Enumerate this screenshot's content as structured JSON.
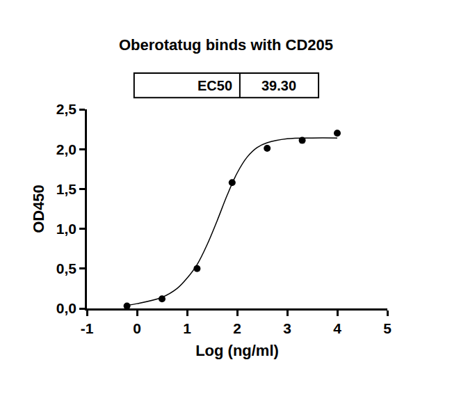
{
  "chart_data": {
    "type": "scatter",
    "title": "Oberotatug binds with CD205",
    "x_label": "Log (ng/ml)",
    "y_label": "OD450",
    "annotations": [
      "EC50",
      "39.30"
    ],
    "series": [
      {
        "type": "scatter",
        "marker": "circle",
        "color": "#000000",
        "x": [
          -0.2,
          0.5,
          1.2,
          1.9,
          2.6,
          3.3,
          4.0
        ],
        "values": [
          0.03,
          0.12,
          0.5,
          1.58,
          2.01,
          2.11,
          2.2
        ]
      },
      {
        "type": "line",
        "line_style": "solid",
        "color": "#000000",
        "x": [
          -0.2,
          0,
          0.5,
          0.8,
          1.0,
          1.2,
          1.4,
          1.6,
          1.8,
          2.0,
          2.2,
          2.4,
          2.6,
          3.0,
          3.5,
          4.0
        ],
        "values": [
          0.04,
          0.06,
          0.14,
          0.25,
          0.38,
          0.55,
          0.8,
          1.1,
          1.42,
          1.7,
          1.9,
          2.02,
          2.08,
          2.13,
          2.14,
          2.14
        ]
      }
    ],
    "xlim": [
      -1,
      5
    ],
    "xticks": [
      -1,
      0,
      1,
      2,
      3,
      4,
      5
    ],
    "ylim": [
      0,
      2.5
    ],
    "yticks": [
      {
        "value": 0,
        "label": "0,0"
      },
      {
        "value": 0.5,
        "label": "0,5"
      },
      {
        "value": 1.0,
        "label": "1,0"
      },
      {
        "value": 1.5,
        "label": "1,5"
      },
      {
        "value": 2.0,
        "label": "2,0"
      },
      {
        "value": 2.5,
        "label": "2,5"
      }
    ],
    "grid": false
  }
}
